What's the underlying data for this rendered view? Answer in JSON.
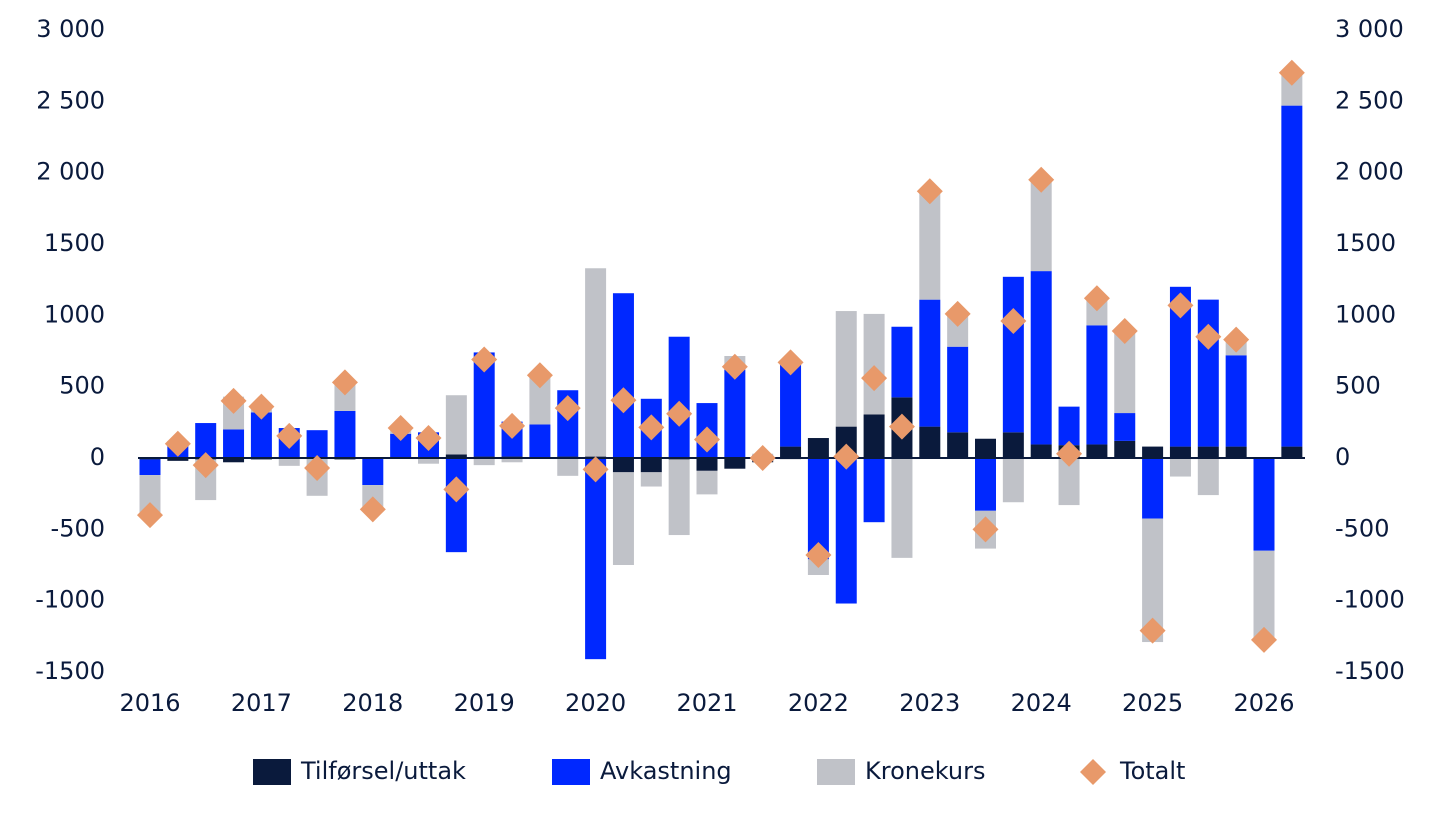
{
  "chart_data": {
    "type": "bar",
    "stacked": true,
    "categories": [
      "2016",
      null,
      null,
      null,
      "2017",
      null,
      null,
      null,
      "2018",
      null,
      null,
      null,
      "2019",
      null,
      null,
      null,
      "2020",
      null,
      null,
      null,
      "2021",
      null,
      null,
      null,
      "2022",
      null,
      null,
      null,
      "2023",
      null,
      null,
      null,
      "2024",
      null,
      null,
      null,
      "2025",
      null,
      null,
      null,
      "2026",
      null
    ],
    "series": [
      {
        "name": "Tilførsel/uttak",
        "color": "#0a1a3c",
        "values": [
          -10,
          -20,
          -10,
          -30,
          -10,
          -5,
          0,
          -10,
          0,
          0,
          0,
          25,
          10,
          10,
          5,
          10,
          10,
          -100,
          -100,
          -10,
          -90,
          -75,
          -30,
          80,
          140,
          220,
          305,
          425,
          220,
          180,
          135,
          180,
          95,
          90,
          95,
          120,
          80,
          80,
          80,
          80,
          5,
          80
        ]
      },
      {
        "name": "Avkastning",
        "color": "#0028ff",
        "values": [
          -110,
          90,
          245,
          200,
          320,
          210,
          195,
          330,
          -190,
          170,
          180,
          -660,
          730,
          245,
          230,
          465,
          -1410,
          1155,
          415,
          850,
          385,
          620,
          20,
          600,
          -710,
          -1020,
          -450,
          495,
          890,
          600,
          -370,
          1090,
          1215,
          270,
          835,
          195,
          -425,
          1120,
          1030,
          640,
          -650,
          2390
        ]
      },
      {
        "name": "Kronekurs",
        "color": "#c0c2c8",
        "values": [
          -280,
          30,
          -285,
          230,
          50,
          -50,
          -265,
          210,
          -170,
          40,
          -40,
          415,
          -50,
          -30,
          345,
          -125,
          1320,
          -650,
          -100,
          -530,
          -165,
          95,
          10,
          -10,
          -110,
          810,
          705,
          -700,
          760,
          230,
          -265,
          -310,
          640,
          -330,
          190,
          575,
          -865,
          -130,
          -260,
          110,
          -630,
          230
        ]
      },
      {
        "name": "Totalt",
        "color": "#e8996a",
        "marker": "diamond",
        "values": [
          -400,
          100,
          -50,
          400,
          360,
          155,
          -70,
          530,
          -360,
          210,
          140,
          -220,
          690,
          225,
          580,
          350,
          -80,
          405,
          215,
          310,
          130,
          640,
          0,
          670,
          -680,
          10,
          560,
          220,
          1870,
          1010,
          -500,
          960,
          1950,
          30,
          1120,
          890,
          -1210,
          1070,
          850,
          830,
          -1275,
          2700
        ]
      }
    ],
    "ylim": [
      -1500,
      3000
    ],
    "yticks": [
      {
        "value": 3000,
        "label": "3 000"
      },
      {
        "value": 2500,
        "label": "2 500"
      },
      {
        "value": 2000,
        "label": "2 000"
      },
      1500,
      1000,
      500,
      0,
      -500,
      -1000,
      -1500
    ],
    "y2lim": [
      -1500,
      3000
    ],
    "y2ticks": [
      {
        "value": 3000,
        "label": "3 000"
      },
      {
        "value": 2500,
        "label": "2 500"
      },
      {
        "value": 2000,
        "label": "2 000"
      },
      1500,
      1000,
      500,
      0,
      -500,
      -1000,
      -1500
    ],
    "legend": "bottom"
  }
}
